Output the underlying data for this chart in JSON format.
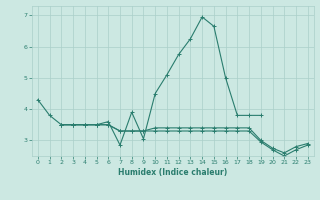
{
  "xlabel": "Humidex (Indice chaleur)",
  "x": [
    0,
    1,
    2,
    3,
    4,
    5,
    6,
    7,
    8,
    9,
    10,
    11,
    12,
    13,
    14,
    15,
    16,
    17,
    18,
    19,
    20,
    21,
    22,
    23
  ],
  "line1": [
    4.3,
    3.8,
    3.5,
    3.5,
    3.5,
    3.5,
    3.6,
    2.85,
    3.9,
    3.05,
    4.5,
    5.1,
    5.75,
    6.25,
    6.95,
    6.65,
    5.0,
    3.8,
    3.8,
    3.8,
    null,
    null,
    null,
    null
  ],
  "line2": [
    null,
    null,
    3.5,
    3.5,
    3.5,
    3.5,
    3.5,
    3.3,
    3.3,
    3.3,
    3.4,
    3.4,
    3.4,
    3.4,
    3.4,
    3.4,
    3.4,
    3.4,
    3.4,
    3.0,
    2.75,
    2.6,
    2.8,
    2.9
  ],
  "line3": [
    null,
    null,
    3.5,
    3.5,
    3.5,
    3.5,
    3.5,
    3.3,
    3.3,
    3.3,
    3.3,
    3.3,
    3.3,
    3.3,
    3.3,
    3.3,
    3.3,
    3.3,
    3.3,
    2.95,
    2.7,
    2.5,
    2.7,
    2.85
  ],
  "line_color": "#2a7d6e",
  "bg_color": "#cce8e2",
  "grid_color": "#aacfc9",
  "ylim": [
    2.5,
    7.3
  ],
  "xlim": [
    -0.5,
    23.5
  ],
  "yticks": [
    3,
    4,
    5,
    6,
    7
  ],
  "xticks": [
    0,
    1,
    2,
    3,
    4,
    5,
    6,
    7,
    8,
    9,
    10,
    11,
    12,
    13,
    14,
    15,
    16,
    17,
    18,
    19,
    20,
    21,
    22,
    23
  ],
  "marker": "+",
  "marker_size": 3,
  "linewidth": 0.8
}
